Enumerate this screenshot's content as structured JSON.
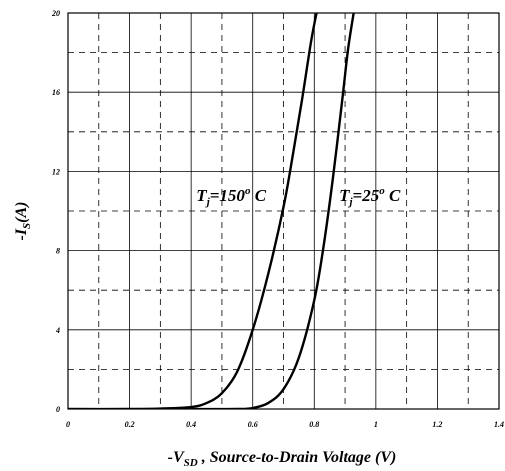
{
  "chart_data": {
    "type": "line",
    "xlabel": "-V",
    "xlabel_sub": "SD",
    "xlabel_rest": " , Source-to-Drain Voltage (V)",
    "ylabel": "-I",
    "ylabel_sub": "S",
    "ylabel_rest": "(A)",
    "xlim": [
      0,
      1.4
    ],
    "ylim": [
      0,
      20
    ],
    "x_ticks": [
      0,
      0.2,
      0.4,
      0.6,
      0.8,
      1,
      1.2,
      1.4
    ],
    "x_tick_labels": [
      "0",
      "0.2",
      "0.4",
      "0.6",
      "0.8",
      "1",
      "1.2",
      "1.4"
    ],
    "y_ticks": [
      0,
      4,
      8,
      12,
      16,
      20
    ],
    "y_tick_labels": [
      "0",
      "4",
      "8",
      "12",
      "16",
      "20"
    ],
    "grid": {
      "solid_x": [
        0.2,
        0.4,
        0.6,
        0.8,
        1.0,
        1.2
      ],
      "dashed_x": [
        0.1,
        0.3,
        0.5,
        0.7,
        0.9,
        1.1,
        1.3
      ],
      "solid_y": [
        4,
        8,
        12,
        16
      ],
      "dashed_y": [
        2,
        6,
        10,
        14,
        18
      ]
    },
    "series": [
      {
        "annotation": "T",
        "annotation_sub": "j",
        "annotation_rest": "=150",
        "annotation_sup": "o",
        "annotation_unit": " C",
        "label_at": [
          0.53,
          10.5
        ],
        "x": [
          0.0,
          0.2,
          0.3,
          0.4,
          0.45,
          0.5,
          0.55,
          0.6,
          0.65,
          0.7,
          0.73,
          0.76,
          0.79,
          0.81
        ],
        "values": [
          0.0,
          0.0,
          0.02,
          0.1,
          0.3,
          0.8,
          1.9,
          4.0,
          6.8,
          10.2,
          12.8,
          15.6,
          18.6,
          20.2
        ]
      },
      {
        "annotation": "T",
        "annotation_sub": "j",
        "annotation_rest": "=25",
        "annotation_sup": "o",
        "annotation_unit": " C",
        "label_at": [
          0.98,
          10.5
        ],
        "x": [
          0.4,
          0.55,
          0.6,
          0.65,
          0.7,
          0.75,
          0.8,
          0.83,
          0.86,
          0.89,
          0.91,
          0.93
        ],
        "values": [
          0.0,
          0.0,
          0.05,
          0.3,
          1.0,
          2.6,
          5.5,
          8.2,
          11.6,
          15.5,
          18.2,
          20.2
        ]
      }
    ]
  }
}
